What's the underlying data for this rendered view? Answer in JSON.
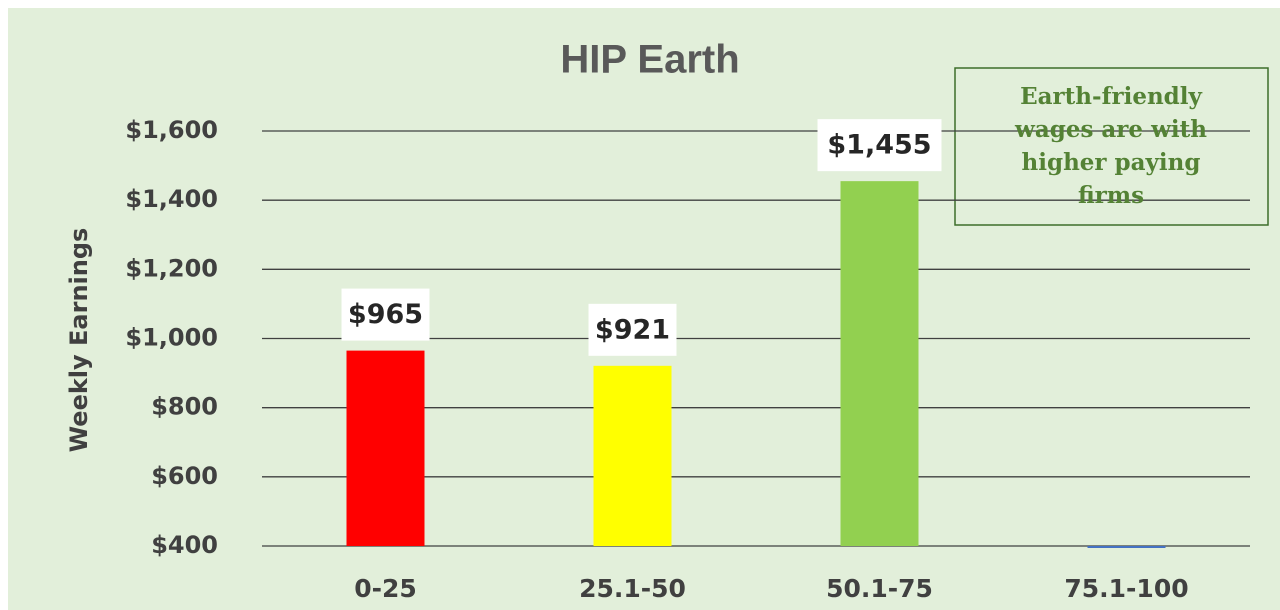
{
  "chart_data": {
    "type": "bar",
    "title": "HIP Earth",
    "y_label": "Weekly Earnings",
    "categories": [
      "0-25",
      "25.1-50",
      "50.1-75",
      "75.1-100"
    ],
    "values": [
      965,
      921,
      1455,
      400
    ],
    "value_labels": [
      "$965",
      "$921",
      "$1,455",
      null
    ],
    "colors": [
      "#ff0000",
      "#ffff00",
      "#92d050",
      "#4472c4"
    ],
    "ylim": [
      400,
      1600
    ],
    "yticks": [
      {
        "value": 400,
        "label": "$400"
      },
      {
        "value": 600,
        "label": "$600"
      },
      {
        "value": 800,
        "label": "$800"
      },
      {
        "value": 1000,
        "label": "$1,000"
      },
      {
        "value": 1200,
        "label": "$1,200"
      },
      {
        "value": 1400,
        "label": "$1,400"
      },
      {
        "value": 1600,
        "label": "$1,600"
      }
    ],
    "grid": true,
    "annotation": [
      "Earth-friendly",
      "wages are with",
      "higher paying",
      "firms"
    ]
  }
}
